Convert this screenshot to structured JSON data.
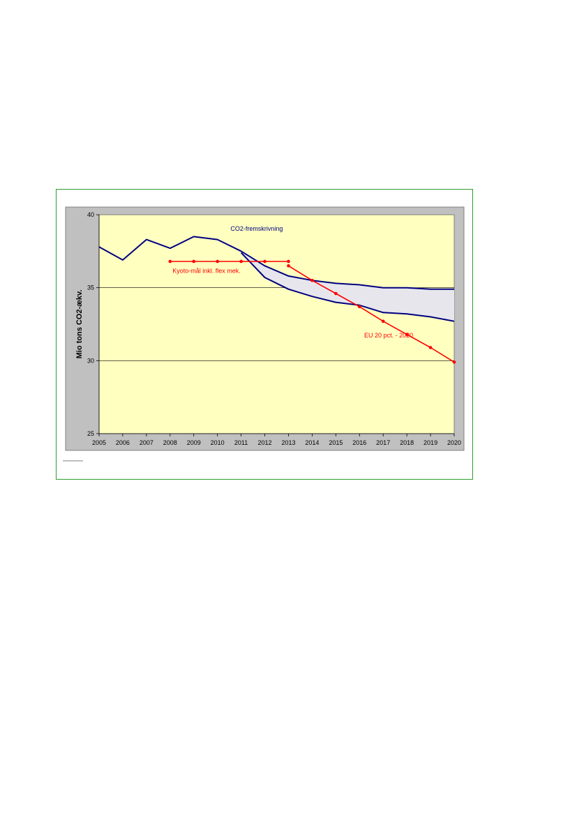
{
  "chart_data": {
    "type": "line",
    "title": "",
    "xlabel": "",
    "ylabel": "Mio tons CO2-ækv.",
    "x": [
      2005,
      2006,
      2007,
      2008,
      2009,
      2010,
      2011,
      2012,
      2013,
      2014,
      2015,
      2016,
      2017,
      2018,
      2019,
      2020
    ],
    "xlim": [
      2005,
      2020
    ],
    "ylim": [
      25,
      40
    ],
    "yticks": [
      25,
      30,
      35,
      40
    ],
    "grid": "horizontal",
    "legend": "none",
    "colors": {
      "plot_bg": "#ffffc0",
      "outer_bg": "#c0c0c0",
      "projection": "#000080",
      "target": "#ff0000",
      "band_fill": "#e6e6ec",
      "frame": "#2e9a2e"
    },
    "series": [
      {
        "name": "",
        "role": "projection-upper",
        "x": [
          2005,
          2006,
          2007,
          2008,
          2009,
          2010,
          2011,
          2012,
          2013,
          2014,
          2015,
          2016,
          2017,
          2018,
          2019,
          2020
        ],
        "values": [
          37.8,
          36.9,
          38.3,
          37.7,
          38.5,
          38.3,
          37.5,
          36.5,
          35.8,
          35.5,
          35.3,
          35.2,
          35.0,
          35.0,
          34.9,
          34.9
        ]
      },
      {
        "name": "",
        "role": "projection-lower",
        "x": [
          2011,
          2012,
          2013,
          2014,
          2015,
          2016,
          2017,
          2018,
          2019,
          2020
        ],
        "values": [
          37.4,
          35.7,
          34.9,
          34.4,
          34.0,
          33.8,
          33.3,
          33.2,
          33.0,
          32.7
        ]
      },
      {
        "name": "",
        "role": "kyoto-target",
        "x": [
          2008,
          2009,
          2010,
          2011,
          2012,
          2013
        ],
        "values": [
          36.8,
          36.8,
          36.8,
          36.8,
          36.8,
          36.8
        ]
      },
      {
        "name": "",
        "role": "eu-target",
        "x": [
          2013,
          2014,
          2015,
          2016,
          2017,
          2018,
          2019,
          2020
        ],
        "values": [
          36.5,
          35.5,
          34.6,
          33.7,
          32.7,
          31.8,
          30.9,
          29.9
        ]
      }
    ],
    "annotations": [
      {
        "text": "CO2-fremskrivning",
        "x": 2010.55,
        "y": 38.9,
        "color": "#000080"
      },
      {
        "text": "Kyoto-mål inkl. flex mek.",
        "x": 2008.1,
        "y": 36.0,
        "color": "#ff0000"
      },
      {
        "text": "EU 20 pct. - 2020",
        "x": 2016.2,
        "y": 31.6,
        "color": "#ff0000"
      }
    ]
  }
}
